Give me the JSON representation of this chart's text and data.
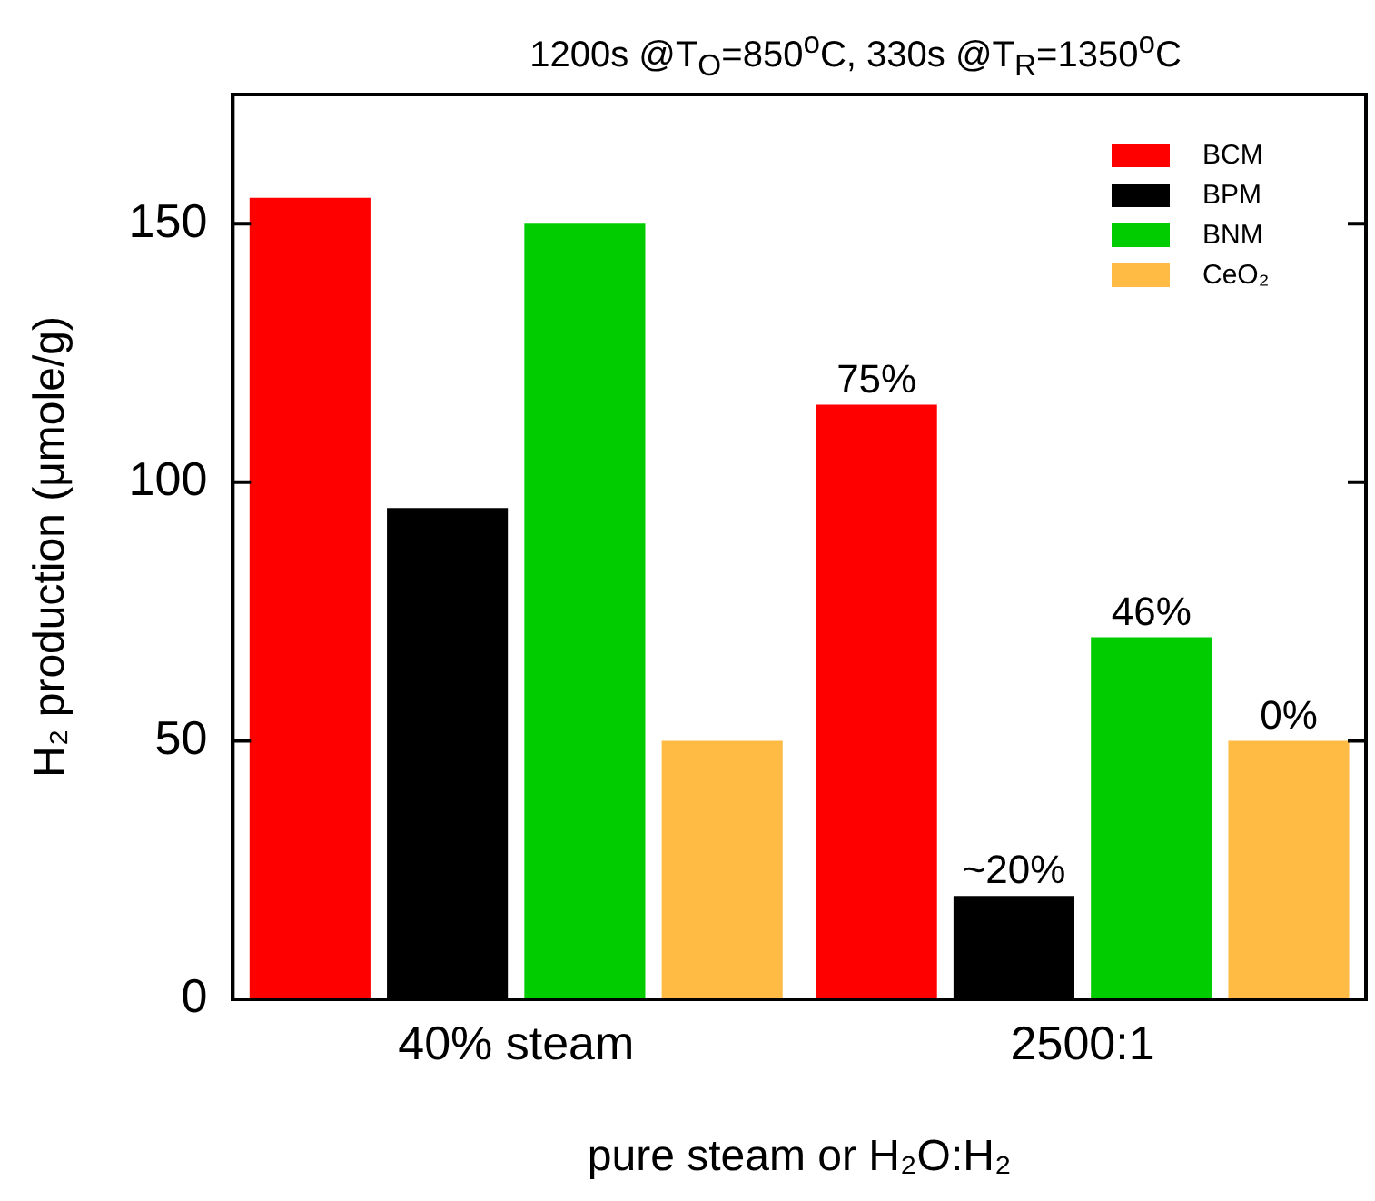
{
  "chart_data": {
    "type": "bar",
    "title": "1200s @T$_{O}$=850$^{o}$C, 330s @T$_{R}$=1350$^{o}$C",
    "xlabel": "pure steam or H₂O:H₂",
    "ylabel": "H₂ production (μmole/g)",
    "categories": [
      "40% steam",
      "2500:1"
    ],
    "series": [
      {
        "name": "BCM",
        "color": "#ff0000",
        "values": [
          155,
          115
        ]
      },
      {
        "name": "BPM",
        "color": "#000000",
        "values": [
          95,
          20
        ]
      },
      {
        "name": "BNM",
        "color": "#00cc00",
        "values": [
          150,
          70
        ]
      },
      {
        "name": "CeO₂",
        "color": "#ffbb44",
        "values": [
          50,
          50
        ]
      }
    ],
    "annotations": [
      "75%",
      "~20%",
      "46%",
      "0%"
    ],
    "ylim": [
      0,
      175
    ],
    "yticks": [
      0,
      50,
      100,
      150
    ],
    "grid": false,
    "legend": "top right"
  }
}
